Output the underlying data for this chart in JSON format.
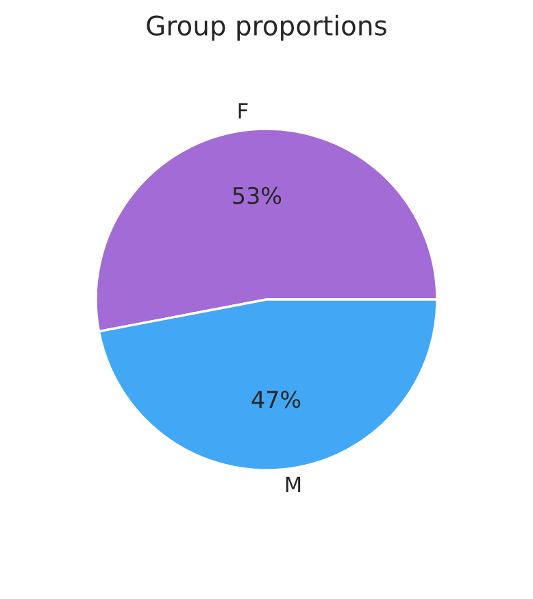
{
  "chart_data": {
    "type": "pie",
    "title": "Group proportions",
    "categories": [
      "F",
      "M"
    ],
    "values": [
      53,
      47
    ],
    "colors": [
      "#a26bd6",
      "#42a7f5"
    ],
    "value_labels": [
      "53%",
      "47%"
    ]
  }
}
